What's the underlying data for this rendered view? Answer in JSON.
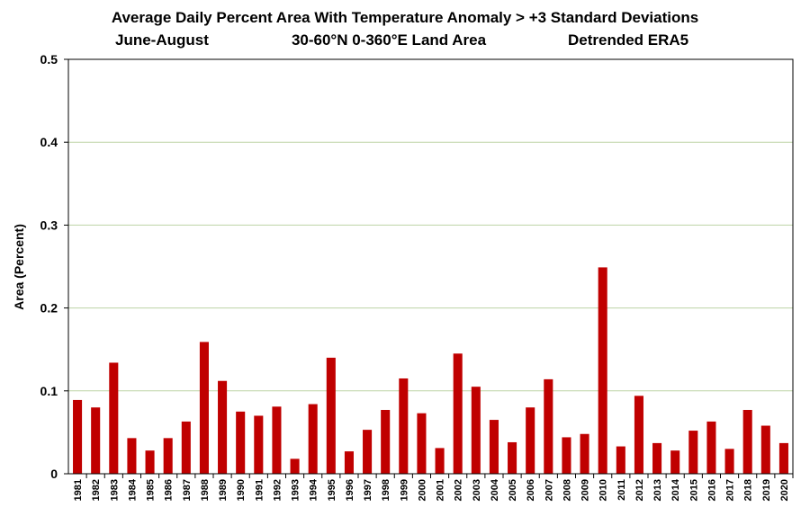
{
  "chart_data": {
    "type": "bar",
    "title": "Average Daily Percent Area With Temperature Anomaly > +3 Standard Deviations",
    "subtitle_left": "June-August",
    "subtitle_center": "30-60°N  0-360°E  Land Area",
    "subtitle_right": "Detrended ERA5",
    "xlabel": "",
    "ylabel": "Area (Percent)",
    "ylim": [
      0,
      0.5
    ],
    "yticks": [
      "0",
      "0.1",
      "0.2",
      "0.3",
      "0.4",
      "0.5"
    ],
    "grid": "horizontal",
    "bar_color": "#c00000",
    "categories": [
      "1981",
      "1982",
      "1983",
      "1984",
      "1985",
      "1986",
      "1987",
      "1988",
      "1989",
      "1990",
      "1991",
      "1992",
      "1993",
      "1994",
      "1995",
      "1996",
      "1997",
      "1998",
      "1999",
      "2000",
      "2001",
      "2002",
      "2003",
      "2004",
      "2005",
      "2006",
      "2007",
      "2008",
      "2009",
      "2010",
      "2011",
      "2012",
      "2013",
      "2014",
      "2015",
      "2016",
      "2017",
      "2018",
      "2019",
      "2020"
    ],
    "values": [
      0.089,
      0.08,
      0.134,
      0.043,
      0.028,
      0.043,
      0.063,
      0.159,
      0.112,
      0.075,
      0.07,
      0.081,
      0.018,
      0.084,
      0.14,
      0.027,
      0.053,
      0.077,
      0.115,
      0.073,
      0.031,
      0.145,
      0.105,
      0.065,
      0.038,
      0.08,
      0.114,
      0.044,
      0.048,
      0.249,
      0.033,
      0.094,
      0.037,
      0.028,
      0.052,
      0.063,
      0.03,
      0.077,
      0.058,
      0.037
    ]
  }
}
